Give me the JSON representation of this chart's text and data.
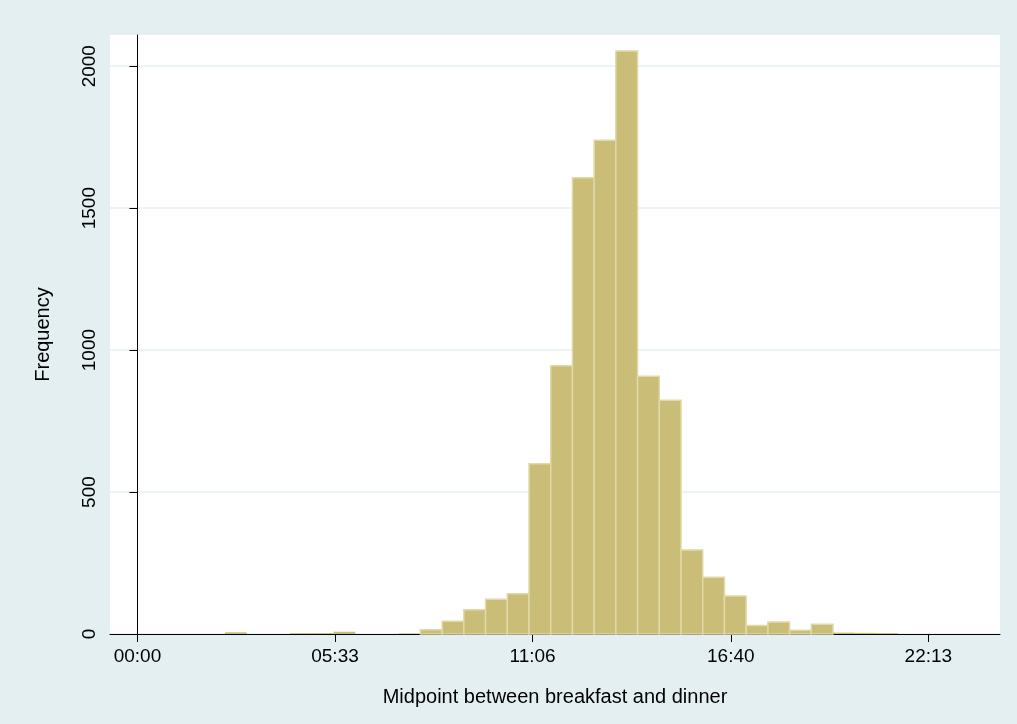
{
  "chart_data": {
    "type": "histogram",
    "xlabel": "Midpoint between breakfast and dinner",
    "ylabel": "Frequency",
    "color": "#c9bd78",
    "bins": [
      2.46,
      3.07,
      3.68,
      4.29,
      4.9,
      5.51,
      6.12,
      6.73,
      7.34,
      7.95,
      8.56,
      9.17,
      9.78,
      10.39,
      11.0,
      11.61,
      12.22,
      12.83,
      13.44,
      14.05,
      14.66,
      15.27,
      15.88,
      16.49,
      17.1,
      17.71,
      18.32,
      18.93,
      19.54,
      20.15,
      20.76,
      21.37,
      21.98
    ],
    "values": [
      6,
      0,
      0,
      3,
      3,
      8,
      0,
      0,
      2,
      15,
      45,
      85,
      122,
      142,
      600,
      945,
      1607,
      1739,
      2054,
      908,
      823,
      296,
      200,
      134,
      30,
      42,
      13,
      34,
      5,
      4,
      3,
      0
    ],
    "xlim": [
      -0.77,
      24.23
    ],
    "xticks": [
      {
        "value": 0,
        "label": "00:00"
      },
      {
        "value": 5.55,
        "label": "05:33"
      },
      {
        "value": 11.1,
        "label": "11:06"
      },
      {
        "value": 16.667,
        "label": "16:40"
      },
      {
        "value": 22.217,
        "label": "22:13"
      }
    ],
    "ylim": [
      0,
      2110
    ],
    "yticks": [
      0,
      500,
      1000,
      1500,
      2000
    ],
    "grid": "y"
  }
}
